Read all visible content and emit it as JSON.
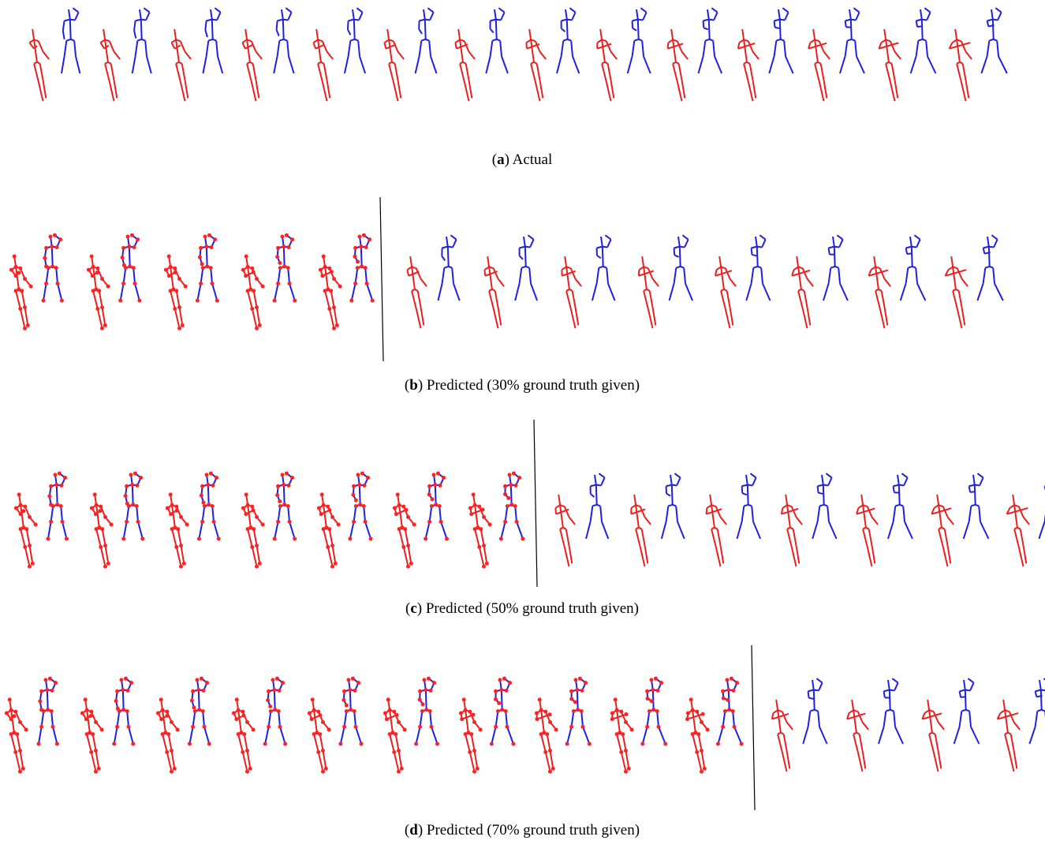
{
  "panels": [
    {
      "caption": [
        "(",
        "a",
        ") Actual"
      ]
    },
    {
      "caption": [
        "(",
        "b",
        ") Predicted (30% ground truth given)"
      ]
    },
    {
      "caption": [
        "(",
        "c",
        ") Predicted (50% ground truth given)"
      ]
    },
    {
      "caption": [
        "(",
        "d",
        ") Predicted (70% ground truth given)"
      ]
    }
  ]
}
